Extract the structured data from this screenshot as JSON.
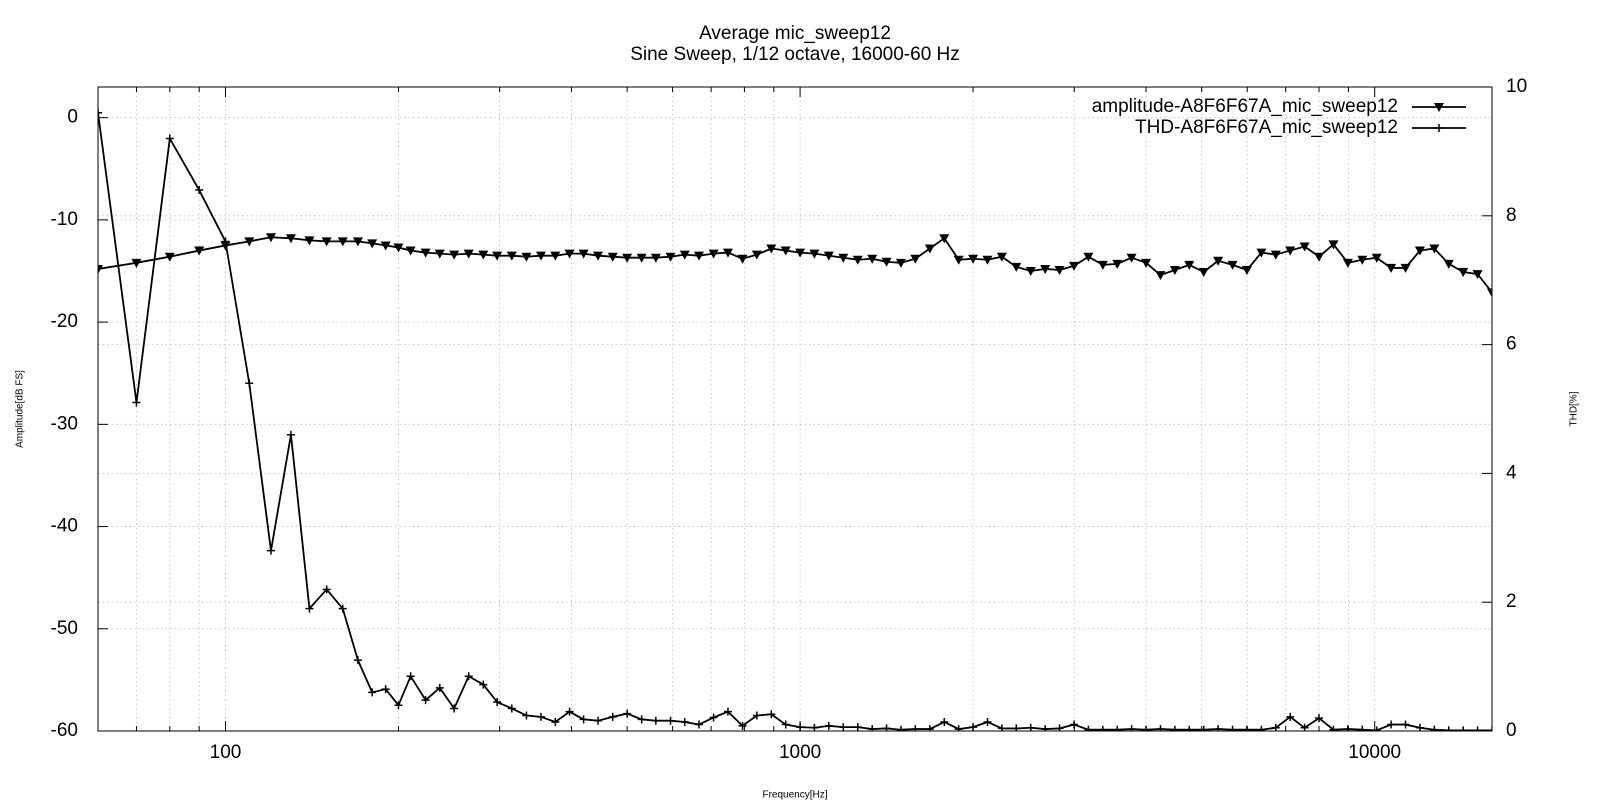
{
  "chart_data": {
    "type": "line",
    "title": "Average mic_sweep12",
    "subtitle": "Sine Sweep, 1/12 octave, 16000-60 Hz",
    "x_label": "Frequency[Hz]",
    "y_label": "Amplitude[dB FS]",
    "y2_label": "THD[%]",
    "x": [
      60,
      70,
      80,
      90,
      100,
      110,
      120,
      130,
      140,
      150,
      160,
      170,
      180,
      190,
      200,
      210,
      223,
      236,
      250,
      265,
      281,
      297,
      315,
      334,
      354,
      375,
      397,
      420,
      445,
      472,
      500,
      530,
      561,
      595,
      630,
      667,
      707,
      749,
      794,
      841,
      891,
      944,
      1000,
      1059,
      1122,
      1189,
      1260,
      1335,
      1414,
      1498,
      1587,
      1682,
      1782,
      1888,
      2000,
      2119,
      2245,
      2378,
      2520,
      2670,
      2828,
      2997,
      3175,
      3364,
      3564,
      3775,
      4000,
      4238,
      4490,
      4757,
      5040,
      5339,
      5657,
      5993,
      6350,
      6727,
      7127,
      7551,
      8000,
      8476,
      8980,
      9514,
      10079,
      10679,
      11314,
      11986,
      12699,
      13454,
      14254,
      15102,
      16000
    ],
    "series": [
      {
        "name": "amplitude-A8F6F67A_mic_sweep12",
        "color": "#000000",
        "marker": "triangle-down",
        "axis": "y",
        "values": [
          -14.8,
          -14.2,
          -13.6,
          -13.0,
          -12.5,
          -12.1,
          -11.7,
          -11.8,
          -12.0,
          -12.1,
          -12.1,
          -12.1,
          -12.3,
          -12.5,
          -12.7,
          -13.0,
          -13.2,
          -13.3,
          -13.4,
          -13.3,
          -13.4,
          -13.5,
          -13.5,
          -13.6,
          -13.5,
          -13.5,
          -13.3,
          -13.3,
          -13.5,
          -13.6,
          -13.7,
          -13.7,
          -13.7,
          -13.6,
          -13.4,
          -13.5,
          -13.3,
          -13.2,
          -13.8,
          -13.4,
          -12.8,
          -13.0,
          -13.2,
          -13.3,
          -13.5,
          -13.7,
          -13.9,
          -13.8,
          -14.1,
          -14.2,
          -13.8,
          -12.8,
          -11.8,
          -13.9,
          -13.8,
          -13.9,
          -13.6,
          -14.6,
          -15.0,
          -14.8,
          -14.9,
          -14.5,
          -13.6,
          -14.4,
          -14.3,
          -13.7,
          -14.2,
          -15.4,
          -14.9,
          -14.4,
          -15.1,
          -14.0,
          -14.4,
          -14.9,
          -13.2,
          -13.4,
          -13.0,
          -12.6,
          -13.6,
          -12.4,
          -14.2,
          -13.9,
          -13.7,
          -14.7,
          -14.7,
          -13.0,
          -12.8,
          -14.3,
          -15.1,
          -15.3,
          -17.1
        ]
      },
      {
        "name": "THD-A8F6F67A_mic_sweep12",
        "color": "#000000",
        "marker": "plus",
        "axis": "y2",
        "values": [
          9.6,
          5.1,
          9.2,
          8.4,
          7.6,
          5.4,
          2.8,
          4.6,
          1.9,
          2.2,
          1.9,
          1.1,
          0.6,
          0.65,
          0.4,
          0.85,
          0.48,
          0.67,
          0.35,
          0.85,
          0.72,
          0.45,
          0.35,
          0.24,
          0.22,
          0.14,
          0.3,
          0.18,
          0.16,
          0.22,
          0.27,
          0.18,
          0.16,
          0.16,
          0.14,
          0.1,
          0.21,
          0.3,
          0.08,
          0.24,
          0.26,
          0.1,
          0.06,
          0.05,
          0.08,
          0.06,
          0.06,
          0.03,
          0.04,
          0.02,
          0.03,
          0.03,
          0.14,
          0.03,
          0.06,
          0.14,
          0.04,
          0.04,
          0.05,
          0.03,
          0.04,
          0.1,
          0.02,
          0.02,
          0.02,
          0.03,
          0.02,
          0.03,
          0.02,
          0.02,
          0.02,
          0.03,
          0.02,
          0.02,
          0.02,
          0.05,
          0.22,
          0.05,
          0.2,
          0.02,
          0.03,
          0.02,
          0.01,
          0.1,
          0.1,
          0.05,
          0.02,
          0.01,
          0.01,
          0.01,
          0.01
        ]
      }
    ],
    "xlog": true,
    "xlim": [
      60,
      16000
    ],
    "xticks": [
      100,
      1000,
      10000
    ],
    "xminor_ticks": [
      60,
      70,
      80,
      90,
      200,
      300,
      400,
      500,
      600,
      700,
      800,
      900,
      2000,
      3000,
      4000,
      5000,
      6000,
      7000,
      8000,
      9000
    ],
    "ylim": [
      -60,
      3
    ],
    "yticks": [
      -60,
      -50,
      -40,
      -30,
      -20,
      -10,
      0
    ],
    "y2lim": [
      0,
      10
    ],
    "y2ticks": [
      0,
      2,
      4,
      6,
      8,
      10
    ],
    "grid": true,
    "legend": "top-right"
  }
}
